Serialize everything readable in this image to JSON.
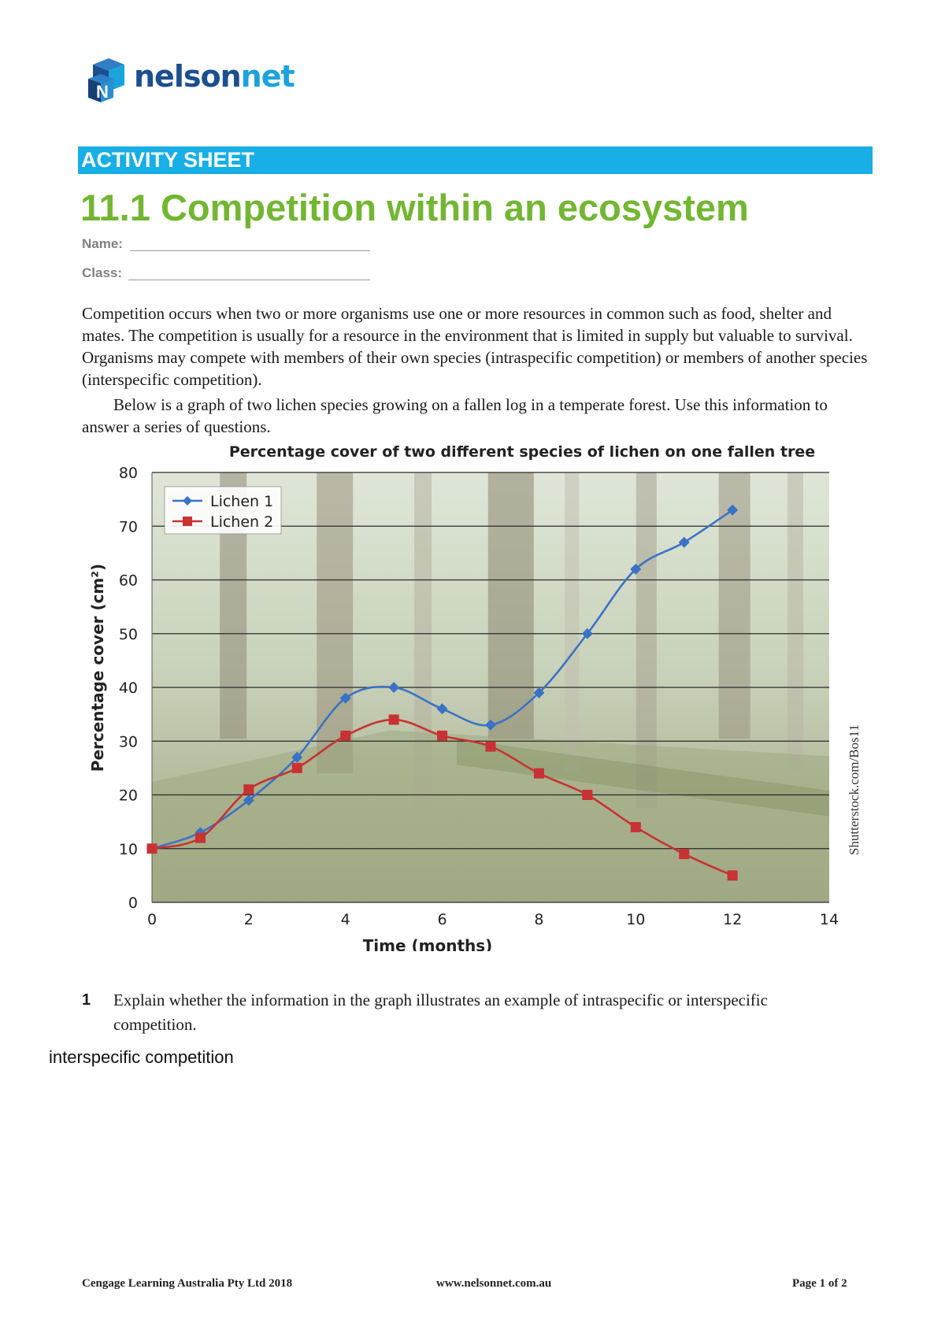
{
  "brand": {
    "name_part1": "nelson",
    "name_part2": "net"
  },
  "banner": {
    "label": "ACTIVITY SHEET"
  },
  "title": "11.1 Competition within an ecosystem",
  "fields": {
    "name_label": "Name:",
    "class_label": "Class:"
  },
  "intro": {
    "paragraph1": "Competition occurs when two or more organisms use one or more resources in common such as food, shelter and mates. The competition is usually for a resource in the environment that is limited in supply but valuable to survival. Organisms may compete with members of their own species (intraspecific competition) or members of another species (interspecific competition).",
    "paragraph2": "Below is a graph of two lichen species growing on a fallen log in a temperate forest. Use this information to answer a series of questions."
  },
  "chart_data": {
    "type": "line",
    "title": "Percentage cover of two different species of lichen on one fallen tree",
    "xlabel": "Time (months)",
    "ylabel": "Percentage cover (cm²)",
    "xlim": [
      0,
      14
    ],
    "ylim": [
      0,
      80
    ],
    "xticks": [
      "0",
      "2",
      "4",
      "6",
      "8",
      "10",
      "12",
      "14"
    ],
    "yticks": [
      "0",
      "10",
      "20",
      "30",
      "40",
      "50",
      "60",
      "70",
      "80"
    ],
    "grid": "horizontal",
    "legend_position": "top-left",
    "background": "forest photograph",
    "credit": "Shutterstock.com/Bos11",
    "series": [
      {
        "name": "Lichen 1",
        "marker": "diamond",
        "color": "#3b72c4",
        "x": [
          0,
          1,
          2,
          3,
          4,
          5,
          6,
          7,
          8,
          9,
          10,
          11,
          12
        ],
        "values": [
          10,
          13,
          19,
          27,
          38,
          40,
          36,
          33,
          39,
          50,
          62,
          67,
          73
        ]
      },
      {
        "name": "Lichen 2",
        "marker": "square",
        "color": "#c83232",
        "x": [
          0,
          1,
          2,
          3,
          4,
          5,
          6,
          7,
          8,
          9,
          10,
          11,
          12
        ],
        "values": [
          10,
          12,
          21,
          25,
          31,
          34,
          31,
          29,
          24,
          20,
          14,
          9,
          5
        ]
      }
    ]
  },
  "question1": {
    "number": "1",
    "text": "Explain whether the information in the graph illustrates an example of intraspecific or interspecific competition.",
    "answer": "interspecific competition"
  },
  "footer": {
    "left": "Cengage Learning Australia Pty Ltd 2018",
    "center": "www.nelsonnet.com.au",
    "right": "Page 1 of 2"
  }
}
